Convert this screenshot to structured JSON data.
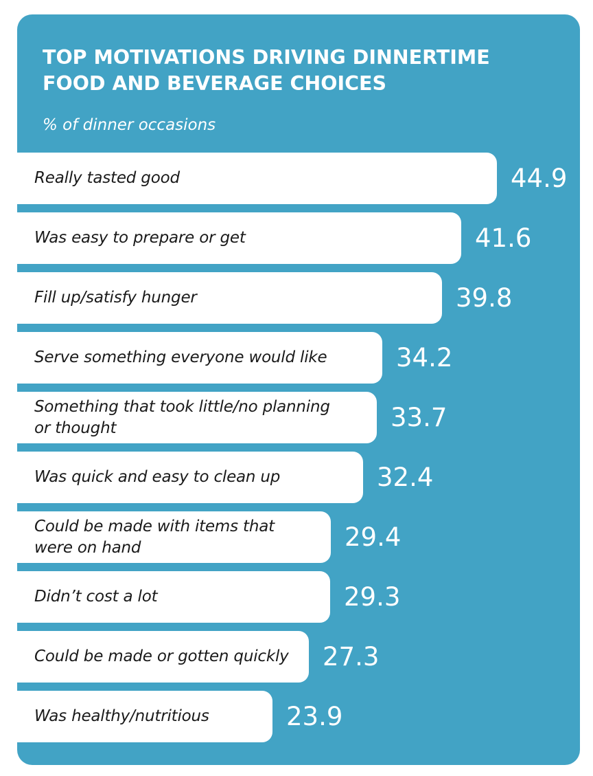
{
  "chart_data": {
    "type": "bar",
    "orientation": "horizontal",
    "title": "TOP MOTIVATIONS DRIVING DINNERTIME FOOD AND BEVERAGE CHOICES",
    "subtitle": "% of dinner occasions",
    "categories": [
      "Really tasted good",
      "Was easy to prepare or get",
      "Fill up/satisfy hunger",
      "Serve something everyone would like",
      "Something that took little/no planning or thought",
      "Was quick and easy to clean up",
      "Could be made with items that were on hand",
      "Didn’t cost a lot",
      "Could be made or gotten quickly",
      "Was healthy/nutritious"
    ],
    "values": [
      44.9,
      41.6,
      39.8,
      34.2,
      33.7,
      32.4,
      29.4,
      29.3,
      27.3,
      23.9
    ],
    "data_labels": [
      "44.9",
      "41.6",
      "39.8",
      "34.2",
      "33.7",
      "32.4",
      "29.4",
      "29.3",
      "27.3",
      "23.9"
    ],
    "xlabel": "",
    "ylabel": "",
    "grid": false,
    "legend": "none",
    "colors": {
      "background": "#42a3c5",
      "bar": "#ffffff",
      "label_text": "#1a1a1a",
      "value_text": "#ffffff"
    }
  }
}
